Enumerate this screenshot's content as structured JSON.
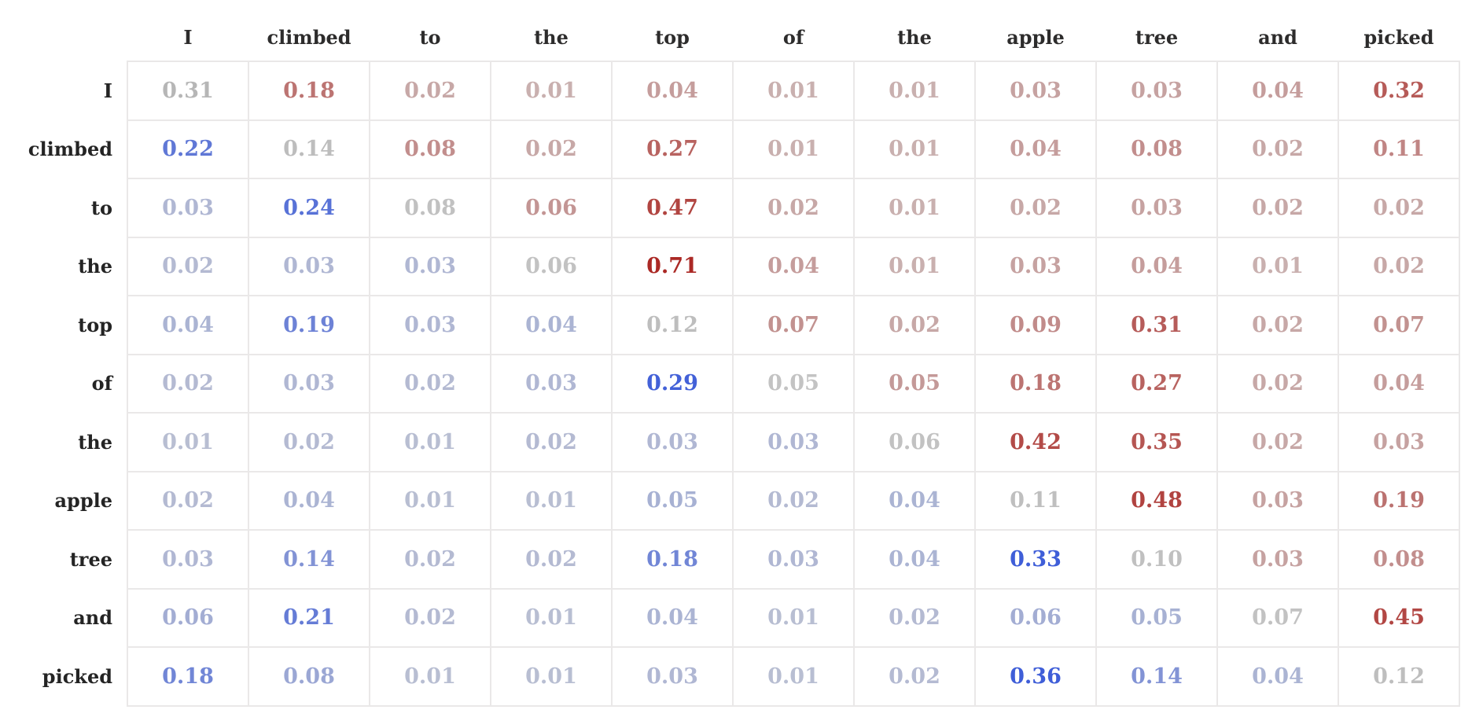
{
  "chart_data": {
    "type": "heatmap",
    "description": "Token-to-token attention weight matrix; rows attend to columns",
    "columns": [
      "I",
      "climbed",
      "to",
      "the",
      "top",
      "of",
      "the",
      "apple",
      "tree",
      "and",
      "picked"
    ],
    "rows": [
      "I",
      "climbed",
      "to",
      "the",
      "top",
      "of",
      "the",
      "apple",
      "tree",
      "and",
      "picked"
    ],
    "values": [
      [
        0.31,
        0.18,
        0.02,
        0.01,
        0.04,
        0.01,
        0.01,
        0.03,
        0.03,
        0.04,
        0.32
      ],
      [
        0.22,
        0.14,
        0.08,
        0.02,
        0.27,
        0.01,
        0.01,
        0.04,
        0.08,
        0.02,
        0.11
      ],
      [
        0.03,
        0.24,
        0.08,
        0.06,
        0.47,
        0.02,
        0.01,
        0.02,
        0.03,
        0.02,
        0.02
      ],
      [
        0.02,
        0.03,
        0.03,
        0.06,
        0.71,
        0.04,
        0.01,
        0.03,
        0.04,
        0.01,
        0.02
      ],
      [
        0.04,
        0.19,
        0.03,
        0.04,
        0.12,
        0.07,
        0.02,
        0.09,
        0.31,
        0.02,
        0.07
      ],
      [
        0.02,
        0.03,
        0.02,
        0.03,
        0.29,
        0.05,
        0.05,
        0.18,
        0.27,
        0.02,
        0.04
      ],
      [
        0.01,
        0.02,
        0.01,
        0.02,
        0.03,
        0.03,
        0.06,
        0.42,
        0.35,
        0.02,
        0.03
      ],
      [
        0.02,
        0.04,
        0.01,
        0.01,
        0.05,
        0.02,
        0.04,
        0.11,
        0.48,
        0.03,
        0.19
      ],
      [
        0.03,
        0.14,
        0.02,
        0.02,
        0.18,
        0.03,
        0.04,
        0.33,
        0.1,
        0.03,
        0.08
      ],
      [
        0.06,
        0.21,
        0.02,
        0.01,
        0.04,
        0.01,
        0.02,
        0.06,
        0.05,
        0.07,
        0.45
      ],
      [
        0.18,
        0.08,
        0.01,
        0.01,
        0.03,
        0.01,
        0.02,
        0.36,
        0.14,
        0.04,
        0.12
      ]
    ],
    "value_format": "two_decimals",
    "legend": "off",
    "grid": "on",
    "color_rule": {
      "below_diagonal": "past token (blue)",
      "above_diagonal": "future token (red)",
      "diagonal": "self (gray)"
    },
    "color_scale": {
      "past_base": "#bcc1d2",
      "past_accent": "#3f5ed8",
      "future_base": "#cdc2c2",
      "future_accent": "#ab2925",
      "self_base": "#cccccc",
      "self_accent": "#ababab",
      "gridline": "#eae8e8",
      "header_text": "#2d2c2c"
    }
  }
}
